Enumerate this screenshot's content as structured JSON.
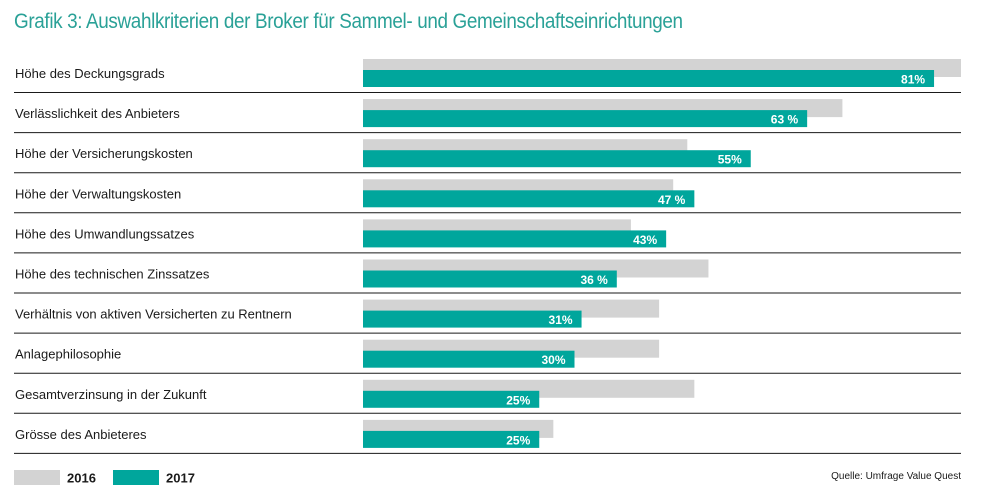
{
  "chart_data": {
    "type": "bar",
    "orientation": "horizontal",
    "title": "Grafik 3: Auswahlkriterien der Broker für Sammel- und Gemeinschaftseinrichtungen",
    "categories": [
      "Höhe des Deckungsgrads",
      "Verlässlichkeit des Anbieters",
      "Höhe der Versicherungskosten",
      "Höhe der Verwaltungskosten",
      "Höhe des Umwandlungssatzes",
      "Höhe des technischen Zinssatzes",
      "Verhältnis von aktiven Versicherten zu Rentnern",
      "Anlagephilosophie",
      "Gesamtverzinsung in der Zukunft",
      "Grösse des Anbieteres"
    ],
    "series": [
      {
        "name": "2016",
        "color": "#d3d3d3",
        "values": [
          85,
          68,
          46,
          44,
          38,
          49,
          42,
          42,
          47,
          27
        ]
      },
      {
        "name": "2017",
        "color": "#00a69c",
        "values": [
          81,
          63,
          55,
          47,
          43,
          36,
          31,
          30,
          25,
          25
        ],
        "labels": [
          "81%",
          "63 %",
          "55%",
          "47 %",
          "43%",
          "36 %",
          "31%",
          "30%",
          "25%",
          "25%"
        ]
      }
    ],
    "xlim": [
      0,
      100
    ],
    "legend_position": "bottom-left",
    "source": "Quelle: Umfrage Value Quest"
  }
}
